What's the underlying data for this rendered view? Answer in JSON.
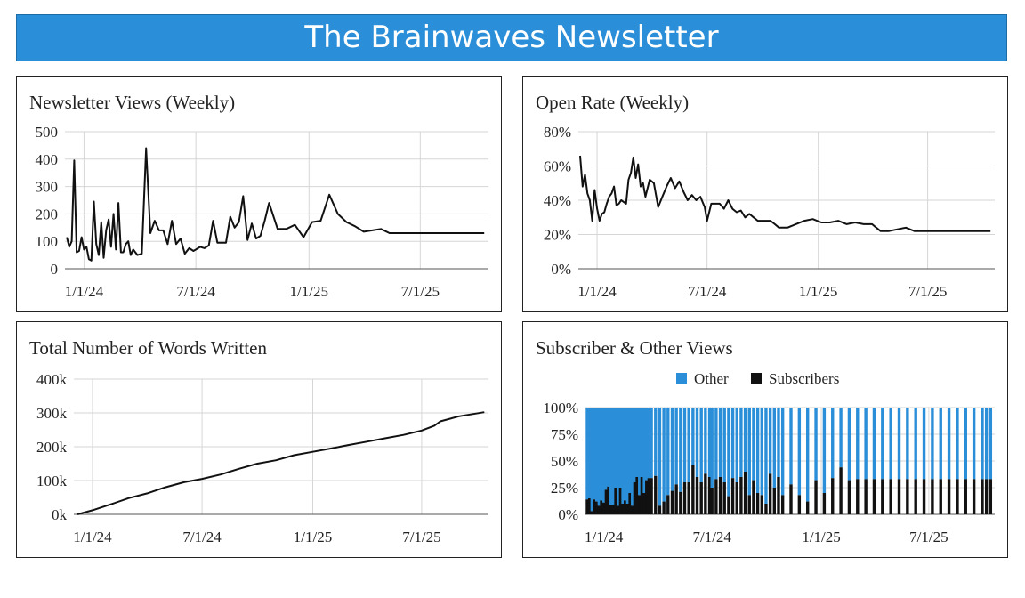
{
  "banner": {
    "title": "The Brainwaves Newsletter",
    "color": "#2a8fd8"
  },
  "charts": {
    "views": {
      "type": "line",
      "title": "Newsletter Views (Weekly)",
      "x_tick_labels": [
        "1/1/24",
        "7/1/24",
        "1/1/25",
        "7/1/25"
      ],
      "x_tick_dates": [
        "2024-01-01",
        "2024-07-01",
        "2025-01-01",
        "2025-07-01"
      ],
      "xlim": [
        "2023-12-01",
        "2025-10-20"
      ],
      "ylim": [
        0,
        500
      ],
      "y_ticks": [
        "0",
        "100",
        "200",
        "300",
        "400",
        "500"
      ],
      "grid": true,
      "line_color": "#111111",
      "x": [
        "2023-12-04",
        "2023-12-08",
        "2023-12-12",
        "2023-12-16",
        "2023-12-20",
        "2023-12-24",
        "2023-12-28",
        "2024-01-01",
        "2024-01-05",
        "2024-01-09",
        "2024-01-13",
        "2024-01-17",
        "2024-01-21",
        "2024-01-25",
        "2024-01-29",
        "2024-02-02",
        "2024-02-06",
        "2024-02-10",
        "2024-02-14",
        "2024-02-18",
        "2024-02-22",
        "2024-02-26",
        "2024-03-01",
        "2024-03-05",
        "2024-03-09",
        "2024-03-13",
        "2024-03-17",
        "2024-03-21",
        "2024-03-28",
        "2024-04-04",
        "2024-04-11",
        "2024-04-18",
        "2024-04-25",
        "2024-05-02",
        "2024-05-09",
        "2024-05-16",
        "2024-05-23",
        "2024-05-30",
        "2024-06-06",
        "2024-06-13",
        "2024-06-20",
        "2024-06-27",
        "2024-07-01",
        "2024-07-08",
        "2024-07-15",
        "2024-07-22",
        "2024-07-29",
        "2024-08-05",
        "2024-08-12",
        "2024-08-19",
        "2024-08-26",
        "2024-09-02",
        "2024-09-09",
        "2024-09-16",
        "2024-09-23",
        "2024-09-30",
        "2024-10-07",
        "2024-10-14",
        "2024-10-21",
        "2024-10-28",
        "2024-11-11",
        "2024-11-25",
        "2024-12-09",
        "2024-12-23",
        "2025-01-06",
        "2025-01-20",
        "2025-02-03",
        "2025-02-17",
        "2025-03-03",
        "2025-03-17",
        "2025-03-31",
        "2025-04-14",
        "2025-04-28",
        "2025-05-12",
        "2025-05-26",
        "2025-06-09",
        "2025-06-23",
        "2025-07-07",
        "2025-07-21",
        "2025-08-04",
        "2025-08-18",
        "2025-09-01",
        "2025-09-15",
        "2025-09-29",
        "2025-10-06",
        "2025-10-13"
      ],
      "values": [
        115,
        80,
        100,
        395,
        60,
        65,
        115,
        70,
        80,
        35,
        30,
        245,
        90,
        50,
        170,
        40,
        140,
        180,
        80,
        200,
        70,
        240,
        60,
        60,
        90,
        100,
        50,
        70,
        50,
        55,
        440,
        130,
        175,
        140,
        140,
        90,
        175,
        90,
        110,
        55,
        75,
        65,
        70,
        80,
        75,
        85,
        175,
        95,
        95,
        95,
        190,
        150,
        170,
        265,
        105,
        165,
        110,
        120,
        175,
        240,
        145,
        145,
        160,
        115,
        170,
        175,
        270,
        200,
        170,
        155,
        135,
        140,
        145,
        130,
        130,
        130,
        130,
        130,
        130,
        130,
        130,
        130,
        130,
        130,
        130,
        130
      ]
    },
    "open_rate": {
      "type": "line",
      "title": "Open Rate (Weekly)",
      "x_tick_labels": [
        "1/1/24",
        "7/1/24",
        "1/1/25",
        "7/1/25"
      ],
      "x_tick_dates": [
        "2024-01-01",
        "2024-07-01",
        "2025-01-01",
        "2025-07-01"
      ],
      "xlim": [
        "2023-12-01",
        "2025-10-20"
      ],
      "ylim": [
        0,
        80
      ],
      "y_ticks": [
        "0%",
        "20%",
        "40%",
        "60%",
        "80%"
      ],
      "grid": true,
      "line_color": "#111111",
      "x": [
        "2023-12-04",
        "2023-12-08",
        "2023-12-12",
        "2023-12-16",
        "2023-12-20",
        "2023-12-24",
        "2023-12-28",
        "2024-01-01",
        "2024-01-05",
        "2024-01-09",
        "2024-01-13",
        "2024-01-17",
        "2024-01-21",
        "2024-01-25",
        "2024-01-29",
        "2024-02-02",
        "2024-02-06",
        "2024-02-10",
        "2024-02-14",
        "2024-02-18",
        "2024-02-22",
        "2024-02-26",
        "2024-03-01",
        "2024-03-05",
        "2024-03-09",
        "2024-03-13",
        "2024-03-17",
        "2024-03-21",
        "2024-03-28",
        "2024-04-04",
        "2024-04-11",
        "2024-04-18",
        "2024-04-25",
        "2024-05-02",
        "2024-05-09",
        "2024-05-16",
        "2024-05-23",
        "2024-05-30",
        "2024-06-06",
        "2024-06-13",
        "2024-06-20",
        "2024-06-27",
        "2024-07-01",
        "2024-07-08",
        "2024-07-15",
        "2024-07-22",
        "2024-07-29",
        "2024-08-05",
        "2024-08-12",
        "2024-08-19",
        "2024-08-26",
        "2024-09-02",
        "2024-09-09",
        "2024-09-16",
        "2024-09-23",
        "2024-09-30",
        "2024-10-07",
        "2024-10-14",
        "2024-10-21",
        "2024-10-28",
        "2024-11-11",
        "2024-11-25",
        "2024-12-09",
        "2024-12-23",
        "2025-01-06",
        "2025-01-20",
        "2025-02-03",
        "2025-02-17",
        "2025-03-03",
        "2025-03-17",
        "2025-03-31",
        "2025-04-14",
        "2025-04-28",
        "2025-05-12",
        "2025-05-26",
        "2025-06-09",
        "2025-06-23",
        "2025-07-07",
        "2025-07-21",
        "2025-08-04",
        "2025-08-18",
        "2025-09-01",
        "2025-09-15",
        "2025-09-29",
        "2025-10-06",
        "2025-10-13"
      ],
      "values": [
        66,
        48,
        55,
        44,
        40,
        28,
        46,
        35,
        28,
        32,
        33,
        38,
        42,
        44,
        48,
        37,
        38,
        40,
        39,
        38,
        52,
        56,
        65,
        53,
        61,
        48,
        50,
        42,
        52,
        50,
        36,
        42,
        48,
        53,
        47,
        51,
        45,
        40,
        43,
        40,
        42,
        36,
        28,
        38,
        38,
        38,
        35,
        40,
        35,
        33,
        34,
        30,
        32,
        30,
        28,
        28,
        28,
        28,
        26,
        24,
        24,
        26,
        28,
        29,
        27,
        27,
        28,
        26,
        27,
        26,
        26,
        22,
        22,
        23,
        24,
        22,
        22,
        22,
        22,
        22,
        22,
        22,
        22,
        22,
        22,
        22
      ]
    },
    "words": {
      "type": "line",
      "title": "Total Number of Words Written",
      "x_tick_labels": [
        "1/1/24",
        "7/1/24",
        "1/1/25",
        "7/1/25"
      ],
      "x_tick_dates": [
        "2024-01-01",
        "2024-07-01",
        "2025-01-01",
        "2025-07-01"
      ],
      "xlim": [
        "2023-12-01",
        "2025-10-20"
      ],
      "ylim": [
        0,
        400000
      ],
      "y_ticks": [
        "0k",
        "100k",
        "200k",
        "300k",
        "400k"
      ],
      "grid": true,
      "line_color": "#111111",
      "x": [
        "2023-12-07",
        "2024-01-01",
        "2024-02-01",
        "2024-03-01",
        "2024-04-01",
        "2024-05-01",
        "2024-06-01",
        "2024-07-01",
        "2024-08-01",
        "2024-09-01",
        "2024-10-01",
        "2024-11-01",
        "2024-12-01",
        "2025-01-01",
        "2025-02-01",
        "2025-03-01",
        "2025-04-01",
        "2025-05-01",
        "2025-06-01",
        "2025-07-01",
        "2025-07-22",
        "2025-08-01",
        "2025-09-01",
        "2025-10-13"
      ],
      "values": [
        0,
        12000,
        30000,
        48000,
        62000,
        80000,
        95000,
        105000,
        118000,
        135000,
        150000,
        160000,
        175000,
        185000,
        195000,
        205000,
        215000,
        225000,
        235000,
        248000,
        262000,
        275000,
        290000,
        302000
      ]
    },
    "subscriber_other": {
      "type": "bar",
      "stacked": true,
      "title": "Subscriber & Other Views",
      "legend": [
        {
          "name": "Other",
          "color": "#2a8fd8"
        },
        {
          "name": "Subscribers",
          "color": "#111111"
        }
      ],
      "legend_placement": "top",
      "x_tick_labels": [
        "1/1/24",
        "7/1/24",
        "1/1/25",
        "7/1/25"
      ],
      "x_tick_dates": [
        "2024-01-01",
        "2024-07-01",
        "2025-01-01",
        "2025-07-01"
      ],
      "xlim": [
        "2023-12-01",
        "2025-10-20"
      ],
      "ylim": [
        0,
        100
      ],
      "y_ticks": [
        "0%",
        "25%",
        "50%",
        "75%",
        "100%"
      ],
      "grid": true,
      "x": [
        "2023-12-04",
        "2023-12-08",
        "2023-12-12",
        "2023-12-16",
        "2023-12-20",
        "2023-12-24",
        "2023-12-28",
        "2024-01-01",
        "2024-01-05",
        "2024-01-09",
        "2024-01-13",
        "2024-01-17",
        "2024-01-21",
        "2024-01-25",
        "2024-01-29",
        "2024-02-02",
        "2024-02-06",
        "2024-02-10",
        "2024-02-14",
        "2024-02-18",
        "2024-02-22",
        "2024-02-26",
        "2024-03-01",
        "2024-03-05",
        "2024-03-09",
        "2024-03-13",
        "2024-03-17",
        "2024-03-21",
        "2024-03-28",
        "2024-04-04",
        "2024-04-11",
        "2024-04-18",
        "2024-04-25",
        "2024-05-02",
        "2024-05-09",
        "2024-05-16",
        "2024-05-23",
        "2024-05-30",
        "2024-06-06",
        "2024-06-13",
        "2024-06-20",
        "2024-06-27",
        "2024-07-01",
        "2024-07-08",
        "2024-07-15",
        "2024-07-22",
        "2024-07-29",
        "2024-08-05",
        "2024-08-12",
        "2024-08-19",
        "2024-08-26",
        "2024-09-02",
        "2024-09-09",
        "2024-09-16",
        "2024-09-23",
        "2024-09-30",
        "2024-10-07",
        "2024-10-14",
        "2024-10-21",
        "2024-10-28",
        "2024-11-11",
        "2024-11-25",
        "2024-12-09",
        "2024-12-23",
        "2025-01-06",
        "2025-01-20",
        "2025-02-03",
        "2025-02-17",
        "2025-03-03",
        "2025-03-17",
        "2025-03-31",
        "2025-04-14",
        "2025-04-28",
        "2025-05-12",
        "2025-05-26",
        "2025-06-09",
        "2025-06-23",
        "2025-07-07",
        "2025-07-21",
        "2025-08-04",
        "2025-08-18",
        "2025-09-01",
        "2025-09-15",
        "2025-09-29",
        "2025-10-06",
        "2025-10-13"
      ],
      "subscribers": [
        14,
        15,
        3,
        14,
        12,
        8,
        13,
        11,
        23,
        26,
        9,
        9,
        25,
        8,
        25,
        10,
        13,
        10,
        20,
        8,
        30,
        35,
        18,
        35,
        20,
        32,
        34,
        34,
        36,
        8,
        12,
        18,
        22,
        28,
        21,
        30,
        30,
        46,
        35,
        30,
        38,
        35,
        25,
        33,
        35,
        30,
        17,
        34,
        30,
        35,
        40,
        18,
        32,
        20,
        18,
        10,
        38,
        25,
        35,
        18,
        28,
        18,
        12,
        32,
        20,
        34,
        44,
        32,
        33,
        33,
        33,
        33,
        33,
        33,
        33,
        33,
        33,
        33,
        33,
        33,
        33,
        33,
        33,
        33,
        33,
        33
      ],
      "other": [
        86,
        85,
        97,
        86,
        88,
        92,
        87,
        89,
        77,
        74,
        91,
        91,
        75,
        92,
        75,
        90,
        87,
        90,
        80,
        92,
        70,
        65,
        82,
        65,
        80,
        68,
        66,
        66,
        64,
        92,
        88,
        82,
        78,
        72,
        79,
        70,
        70,
        54,
        65,
        70,
        62,
        65,
        75,
        67,
        65,
        70,
        83,
        66,
        70,
        65,
        60,
        82,
        68,
        80,
        82,
        90,
        62,
        75,
        65,
        82,
        72,
        82,
        88,
        68,
        80,
        66,
        56,
        68,
        67,
        67,
        67,
        67,
        67,
        67,
        67,
        67,
        67,
        67,
        67,
        67,
        67,
        67,
        67,
        67,
        67,
        67
      ]
    }
  }
}
